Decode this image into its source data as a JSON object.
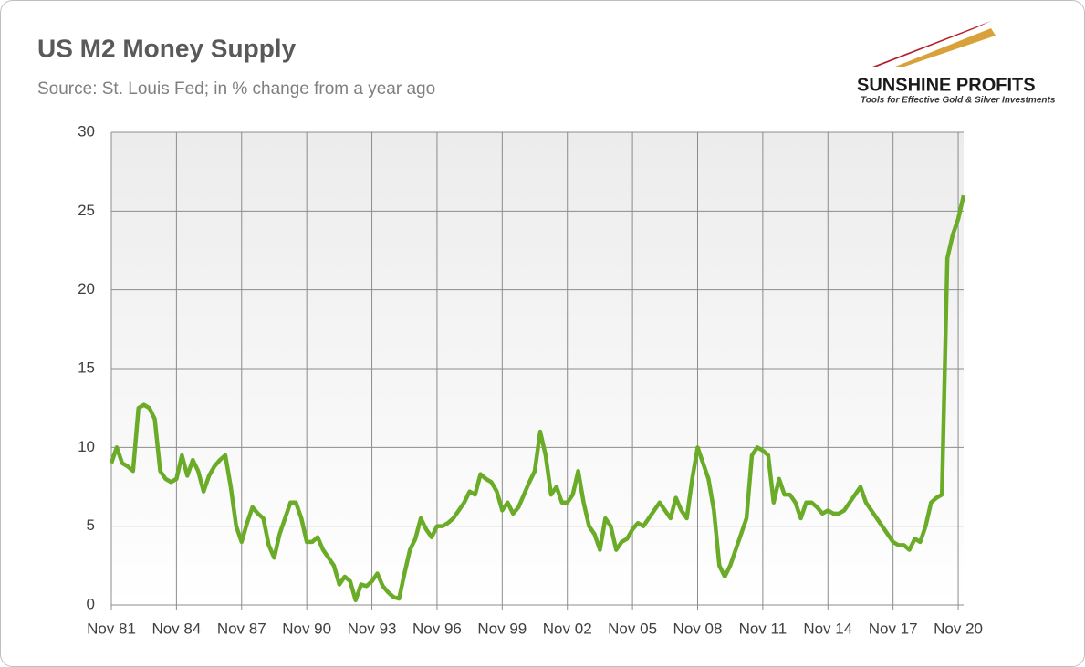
{
  "chart_data": {
    "type": "line",
    "title": "US M2 Money Supply",
    "subtitle": "Source: St. Louis Fed; in % change from a year ago",
    "categories": [
      "Nov 81",
      null,
      null,
      null,
      null,
      null,
      null,
      null,
      null,
      null,
      null,
      null,
      "Nov 84",
      null,
      null,
      null,
      null,
      null,
      null,
      null,
      null,
      null,
      null,
      null,
      "Nov 87",
      null,
      null,
      null,
      null,
      null,
      null,
      null,
      null,
      null,
      null,
      null,
      "Nov 90",
      null,
      null,
      null,
      null,
      null,
      null,
      null,
      null,
      null,
      null,
      null,
      "Nov 93",
      null,
      null,
      null,
      null,
      null,
      null,
      null,
      null,
      null,
      null,
      null,
      "Nov 96",
      null,
      null,
      null,
      null,
      null,
      null,
      null,
      null,
      null,
      null,
      null,
      "Nov 99",
      null,
      null,
      null,
      null,
      null,
      null,
      null,
      null,
      null,
      null,
      null,
      "Nov 02",
      null,
      null,
      null,
      null,
      null,
      null,
      null,
      null,
      null,
      null,
      null,
      "Nov 05",
      null,
      null,
      null,
      null,
      null,
      null,
      null,
      null,
      null,
      null,
      null,
      "Nov 08",
      null,
      null,
      null,
      null,
      null,
      null,
      null,
      null,
      null,
      null,
      null,
      "Nov 11",
      null,
      null,
      null,
      null,
      null,
      null,
      null,
      null,
      null,
      null,
      null,
      "Nov 14",
      null,
      null,
      null,
      null,
      null,
      null,
      null,
      null,
      null,
      null,
      null,
      "Nov 17",
      null,
      null,
      null,
      null,
      null,
      null,
      null,
      null,
      null,
      null,
      null,
      "Nov 20",
      null
    ],
    "values": [
      9,
      10,
      9,
      8.8,
      8.5,
      12.5,
      12.7,
      12.5,
      11.8,
      8.5,
      8,
      7.8,
      8,
      9.5,
      8.2,
      9.2,
      8.5,
      7.2,
      8.2,
      8.8,
      9.2,
      9.5,
      7.5,
      5,
      4,
      5.2,
      6.2,
      5.8,
      5.5,
      3.8,
      3,
      4.5,
      5.5,
      6.5,
      6.5,
      5.5,
      4,
      4,
      4.3,
      3.5,
      3,
      2.5,
      1.3,
      1.8,
      1.5,
      0.3,
      1.3,
      1.2,
      1.5,
      2,
      1.2,
      0.8,
      0.5,
      0.4,
      2,
      3.5,
      4.2,
      5.5,
      4.8,
      4.3,
      5,
      5,
      5.2,
      5.5,
      6,
      6.5,
      7.2,
      7,
      8.3,
      8,
      7.8,
      7.2,
      6,
      6.5,
      5.8,
      6.2,
      7,
      7.8,
      8.5,
      11,
      9.5,
      7,
      7.5,
      6.5,
      6.5,
      7,
      8.5,
      6.5,
      5,
      4.5,
      3.5,
      5.5,
      5,
      3.5,
      4,
      4.2,
      4.8,
      5.2,
      5,
      5.5,
      6,
      6.5,
      6,
      5.5,
      6.8,
      6,
      5.5,
      8,
      10,
      9,
      8,
      6,
      2.5,
      1.8,
      2.5,
      3.5,
      4.5,
      5.5,
      9.5,
      10,
      9.8,
      9.5,
      6.5,
      8,
      7,
      7,
      6.5,
      5.5,
      6.5,
      6.5,
      6.2,
      5.8,
      6,
      5.8,
      5.8,
      6,
      6.5,
      7,
      7.5,
      6.5,
      6,
      5.5,
      5,
      4.5,
      4,
      3.8,
      3.8,
      3.5,
      4.2,
      4,
      5,
      6.5,
      6.8,
      7,
      22,
      23.5,
      24.5,
      26
    ],
    "color": "#6aab27",
    "ylim": [
      0,
      30
    ],
    "yticks": [
      0,
      5,
      10,
      15,
      20,
      25,
      30
    ],
    "grid": true
  },
  "logo": {
    "name": "SUNSHINE PROFITS",
    "tagline": "Tools for Effective Gold & Silver Investments"
  }
}
